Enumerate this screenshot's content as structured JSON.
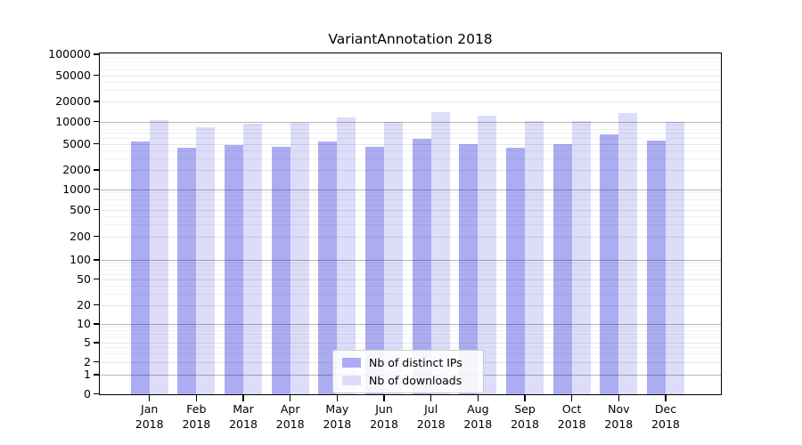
{
  "chart_data": {
    "type": "bar",
    "title": "VariantAnnotation 2018",
    "year": "2018",
    "categories": [
      "Jan",
      "Feb",
      "Mar",
      "Apr",
      "May",
      "Jun",
      "Jul",
      "Aug",
      "Sep",
      "Oct",
      "Nov",
      "Dec"
    ],
    "series": [
      {
        "name": "Nb of distinct IPs",
        "color": "#acacf3",
        "values": [
          5300,
          4400,
          4700,
          4500,
          5300,
          4500,
          5900,
          4900,
          4300,
          4900,
          6700,
          5500
        ]
      },
      {
        "name": "Nb of downloads",
        "color": "#ddddf9",
        "values": [
          10400,
          8300,
          9300,
          9700,
          11400,
          10000,
          13900,
          12200,
          10100,
          10200,
          13500,
          10000
        ]
      }
    ],
    "y_axis": {
      "ticks": [
        0,
        1,
        2,
        5,
        10,
        20,
        50,
        100,
        200,
        500,
        1000,
        2000,
        5000,
        10000,
        20000,
        50000,
        100000
      ],
      "range": [
        0,
        100000
      ],
      "scale": "log-1-2-5"
    },
    "grid": true,
    "legend_position": "lower center"
  }
}
